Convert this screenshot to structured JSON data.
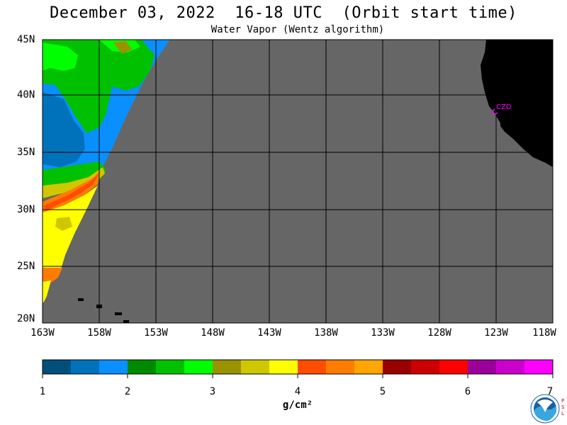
{
  "header": {
    "title": "December 03, 2022  16-18 UTC  (Orbit start time)",
    "subtitle": "Water Vapor (Wentz algorithm)"
  },
  "map": {
    "lat_labels": [
      "45N",
      "40N",
      "35N",
      "30N",
      "25N",
      "20N"
    ],
    "lon_labels": [
      "163W",
      "158W",
      "153W",
      "148W",
      "143W",
      "138W",
      "133W",
      "128W",
      "123W",
      "118W"
    ],
    "station_label": "CZD",
    "colors": {
      "no_data": "#666666",
      "land": "#000000",
      "grid": "#000000",
      "station": "#ff00ff"
    }
  },
  "colorbar": {
    "ticks": [
      "1",
      "2",
      "3",
      "4",
      "5",
      "6",
      "7"
    ],
    "units": "g/cm²",
    "colors": [
      "#004f7a",
      "#0072bb",
      "#0a8fff",
      "#008a00",
      "#00c000",
      "#00ff00",
      "#9a9300",
      "#cfc800",
      "#ffff00",
      "#ff4d00",
      "#ff7c00",
      "#ffa600",
      "#990000",
      "#cc0000",
      "#ff0000",
      "#9b009b",
      "#cc00cc",
      "#ff00ff"
    ]
  },
  "logo": {
    "name": "NOAA",
    "side_text": "PSL"
  }
}
